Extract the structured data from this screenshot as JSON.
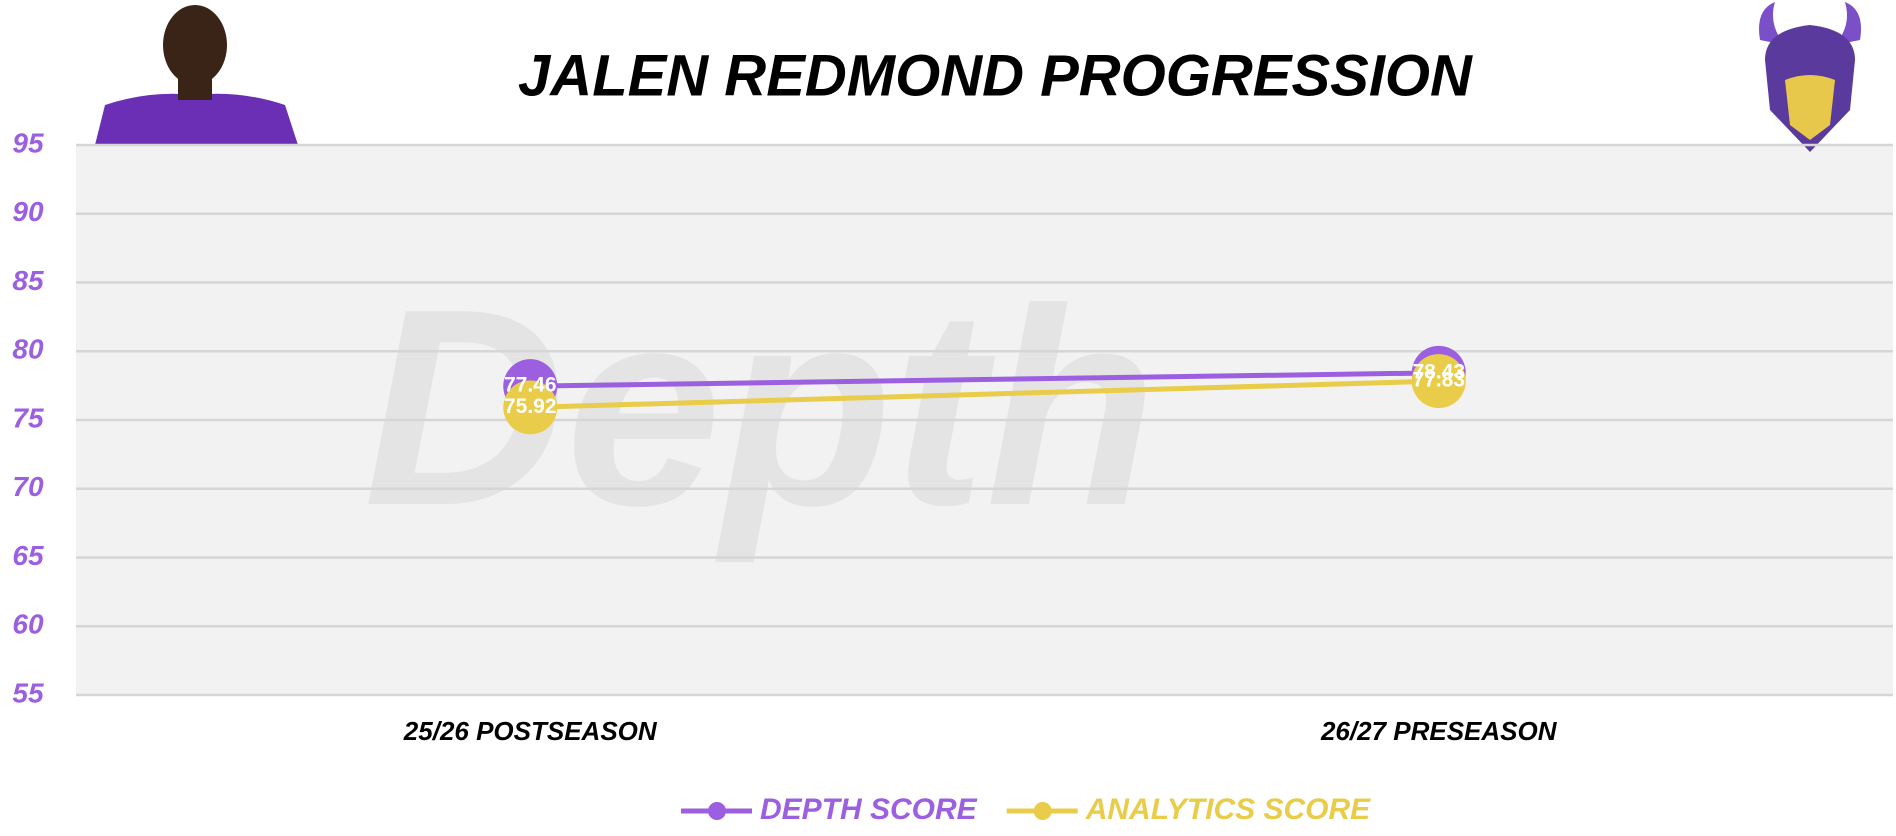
{
  "chart_data": {
    "type": "line",
    "title": "JALEN REDMOND PROGRESSION",
    "watermark": "Depth",
    "categories": [
      "25/26 POSTSEASON",
      "26/27 PRESEASON"
    ],
    "series": [
      {
        "name": "DEPTH SCORE",
        "color": "#9b5fe0",
        "values": [
          77.46,
          78.43
        ]
      },
      {
        "name": "ANALYTICS SCORE",
        "color": "#e8cc4a",
        "values": [
          75.92,
          77.83
        ]
      }
    ],
    "ylim": [
      55,
      95
    ],
    "yticks": [
      55,
      60,
      65,
      70,
      75,
      80,
      85,
      90,
      95
    ],
    "grid": true,
    "legend": "bottom"
  }
}
